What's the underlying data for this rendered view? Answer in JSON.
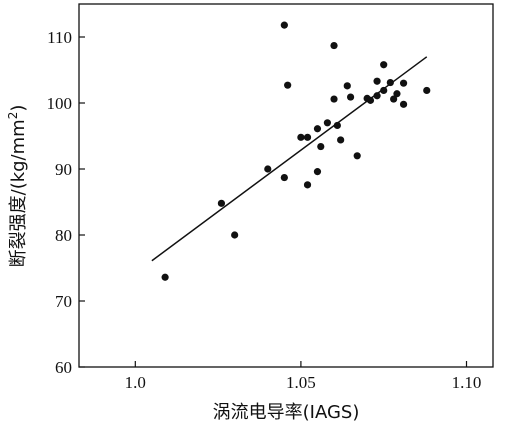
{
  "chart_data": {
    "type": "scatter",
    "title": "",
    "xlabel": "涡流电导率(IAGS)",
    "ylabel_prefix": "断裂强度/(kg/mm",
    "ylabel_superscript": "2",
    "ylabel_suffix": ")",
    "xlim": [
      0.983,
      1.108
    ],
    "ylim": [
      60,
      115
    ],
    "x_ticks": [
      1.0,
      1.05,
      1.1
    ],
    "x_tick_labels": [
      "1.0",
      "1.05",
      "1.10"
    ],
    "y_ticks": [
      60,
      70,
      80,
      90,
      100,
      110
    ],
    "y_tick_labels": [
      "60",
      "70",
      "80",
      "90",
      "100",
      "110"
    ],
    "grid": false,
    "legend": "none",
    "point_color": "#111111",
    "points": [
      {
        "x": 1.009,
        "y": 73.6
      },
      {
        "x": 1.026,
        "y": 84.8
      },
      {
        "x": 1.03,
        "y": 80.0
      },
      {
        "x": 1.04,
        "y": 90.0
      },
      {
        "x": 1.045,
        "y": 111.8
      },
      {
        "x": 1.045,
        "y": 88.7
      },
      {
        "x": 1.046,
        "y": 102.7
      },
      {
        "x": 1.05,
        "y": 94.8
      },
      {
        "x": 1.052,
        "y": 94.8
      },
      {
        "x": 1.052,
        "y": 87.6
      },
      {
        "x": 1.055,
        "y": 89.6
      },
      {
        "x": 1.055,
        "y": 96.1
      },
      {
        "x": 1.056,
        "y": 93.4
      },
      {
        "x": 1.058,
        "y": 97.0
      },
      {
        "x": 1.06,
        "y": 108.7
      },
      {
        "x": 1.06,
        "y": 100.6
      },
      {
        "x": 1.061,
        "y": 96.6
      },
      {
        "x": 1.062,
        "y": 94.4
      },
      {
        "x": 1.064,
        "y": 102.6
      },
      {
        "x": 1.065,
        "y": 100.9
      },
      {
        "x": 1.067,
        "y": 92.0
      },
      {
        "x": 1.07,
        "y": 100.7
      },
      {
        "x": 1.071,
        "y": 100.4
      },
      {
        "x": 1.073,
        "y": 103.3
      },
      {
        "x": 1.073,
        "y": 101.1
      },
      {
        "x": 1.075,
        "y": 105.8
      },
      {
        "x": 1.075,
        "y": 101.9
      },
      {
        "x": 1.077,
        "y": 103.1
      },
      {
        "x": 1.078,
        "y": 100.6
      },
      {
        "x": 1.079,
        "y": 101.4
      },
      {
        "x": 1.081,
        "y": 103.0
      },
      {
        "x": 1.081,
        "y": 99.8
      },
      {
        "x": 1.088,
        "y": 101.9
      }
    ],
    "fit_line": {
      "x": [
        1.005,
        1.088
      ],
      "y": [
        76.1,
        107.0
      ]
    }
  }
}
